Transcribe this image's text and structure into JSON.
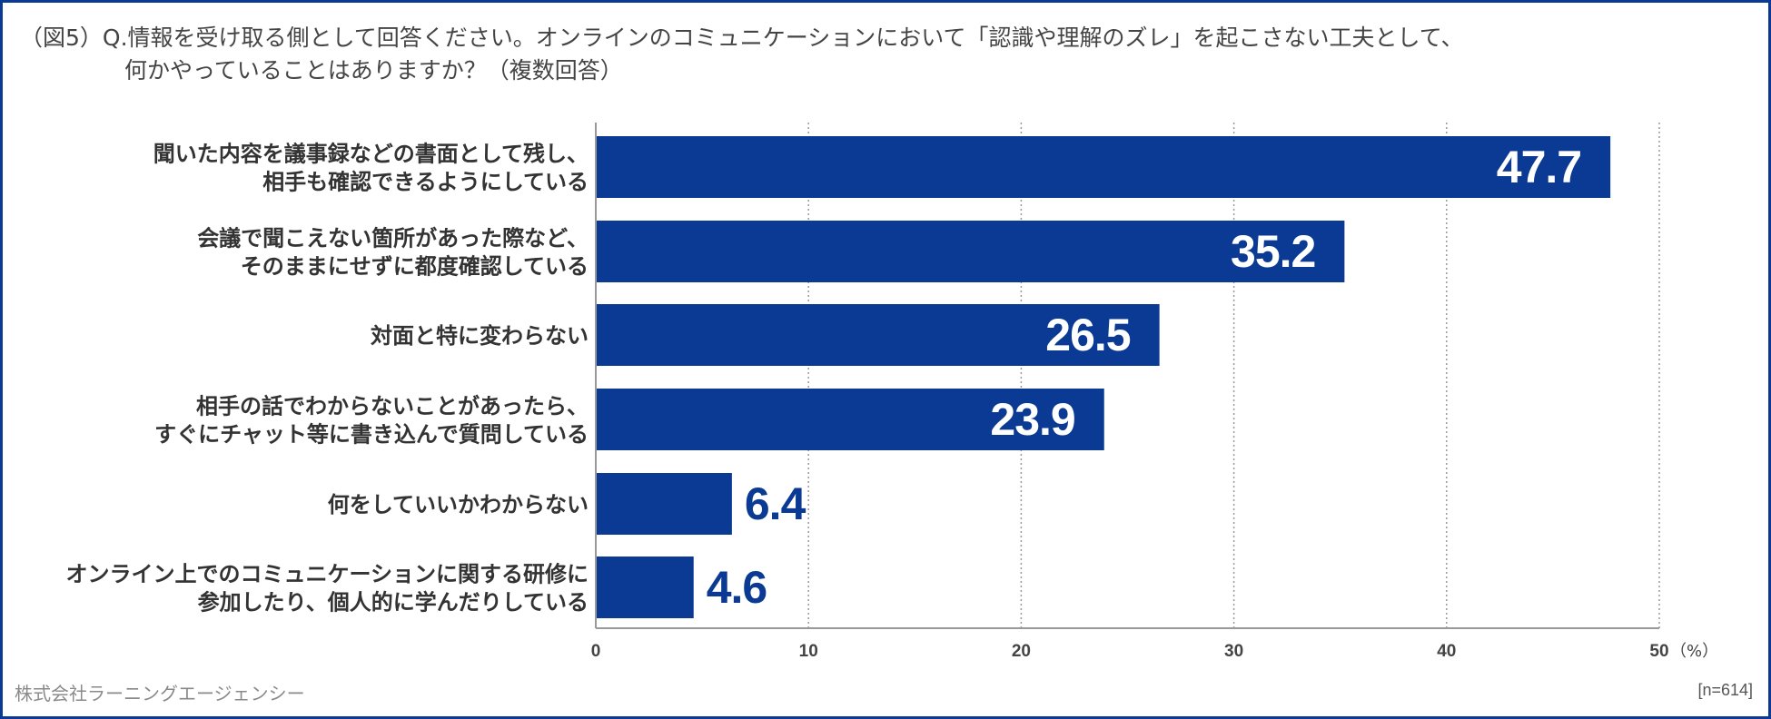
{
  "chart_data": {
    "type": "bar",
    "orientation": "horizontal",
    "title_line1": "（図5）Q.情報を受け取る側として回答ください。オンラインのコミュニケーションにおいて「認識や理解のズレ」を起こさない工夫として、",
    "title_line2": "何かやっていることはありますか？（複数回答）",
    "categories": [
      [
        "聞いた内容を議事録などの書面として残し、",
        "相手も確認できるようにしている"
      ],
      [
        "会議で聞こえない箇所があった際など、",
        "そのままにせずに都度確認している"
      ],
      [
        "対面と特に変わらない"
      ],
      [
        "相手の話でわからないことがあったら、",
        "すぐにチャット等に書き込んで質問している"
      ],
      [
        "何をしていいかわからない"
      ],
      [
        "オンライン上でのコミュニケーションに関する研修に",
        "参加したり、個人的に学んだりしている"
      ]
    ],
    "values": [
      47.7,
      35.2,
      26.5,
      23.9,
      6.4,
      4.6
    ],
    "value_labels": [
      "47.7",
      "35.2",
      "26.5",
      "23.9",
      "6.4",
      "4.6"
    ],
    "xlim": [
      0,
      50
    ],
    "ticks": [
      0,
      10,
      20,
      30,
      40,
      50
    ],
    "unit_label": "（%）",
    "grid": true,
    "colors": {
      "bar": "#0b3a94",
      "label_inside": "#ffffff",
      "label_outside": "#0b3a94",
      "axis": "#999999",
      "grid": "#9a9a9a",
      "category_text": "#333333",
      "tick_text": "#444444"
    }
  },
  "footer": {
    "company": "株式会社ラーニングエージェンシー",
    "sample": "[n=614]"
  }
}
